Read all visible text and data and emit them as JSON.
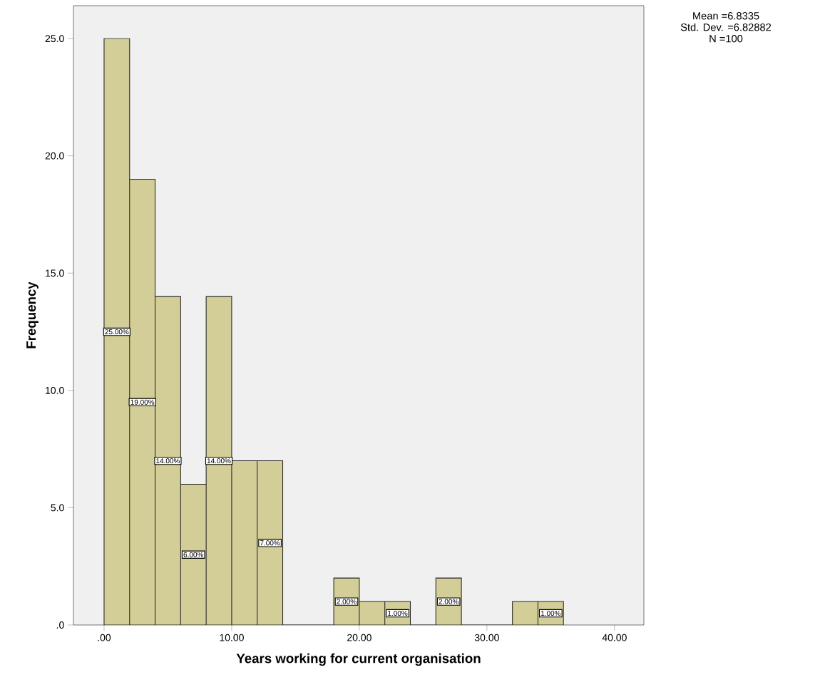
{
  "chart_data": {
    "type": "histogram",
    "xlabel": "Years working for current organisation",
    "ylabel": "Frequency",
    "bins": [
      0,
      2,
      4,
      6,
      8,
      10,
      12,
      14,
      16,
      18,
      20,
      22,
      24,
      26,
      28,
      30,
      32,
      34,
      36
    ],
    "values": [
      25,
      19,
      14,
      6,
      14,
      7,
      7,
      0,
      0,
      2,
      1,
      1,
      0,
      2,
      0,
      0,
      1,
      1
    ],
    "value_labels": [
      "25.00%",
      "19.00%",
      "14.00%",
      "6.00%",
      "14.00%",
      null,
      "7.00%",
      null,
      null,
      "2.00%",
      null,
      "1.00%",
      null,
      "2.00%",
      null,
      null,
      null,
      "1.00%"
    ],
    "color": "#d3ce97",
    "xlim": [
      -2.4,
      42.3
    ],
    "ylim": [
      0,
      26.4
    ],
    "xticks": [
      {
        "value": 0,
        "label": ".00"
      },
      {
        "value": 10,
        "label": "10.00"
      },
      {
        "value": 20,
        "label": "20.00"
      },
      {
        "value": 30,
        "label": "30.00"
      },
      {
        "value": 40,
        "label": "40.00"
      }
    ],
    "yticks": [
      {
        "value": 0,
        "label": ".0"
      },
      {
        "value": 5,
        "label": "5.0"
      },
      {
        "value": 10,
        "label": "10.0"
      },
      {
        "value": 15,
        "label": "15.0"
      },
      {
        "value": 20,
        "label": "20.0"
      },
      {
        "value": 25,
        "label": "25.0"
      }
    ],
    "annotations": [
      "Mean =6.8335",
      "Std. Dev. =6.82882",
      "N =100"
    ],
    "grid": false
  }
}
